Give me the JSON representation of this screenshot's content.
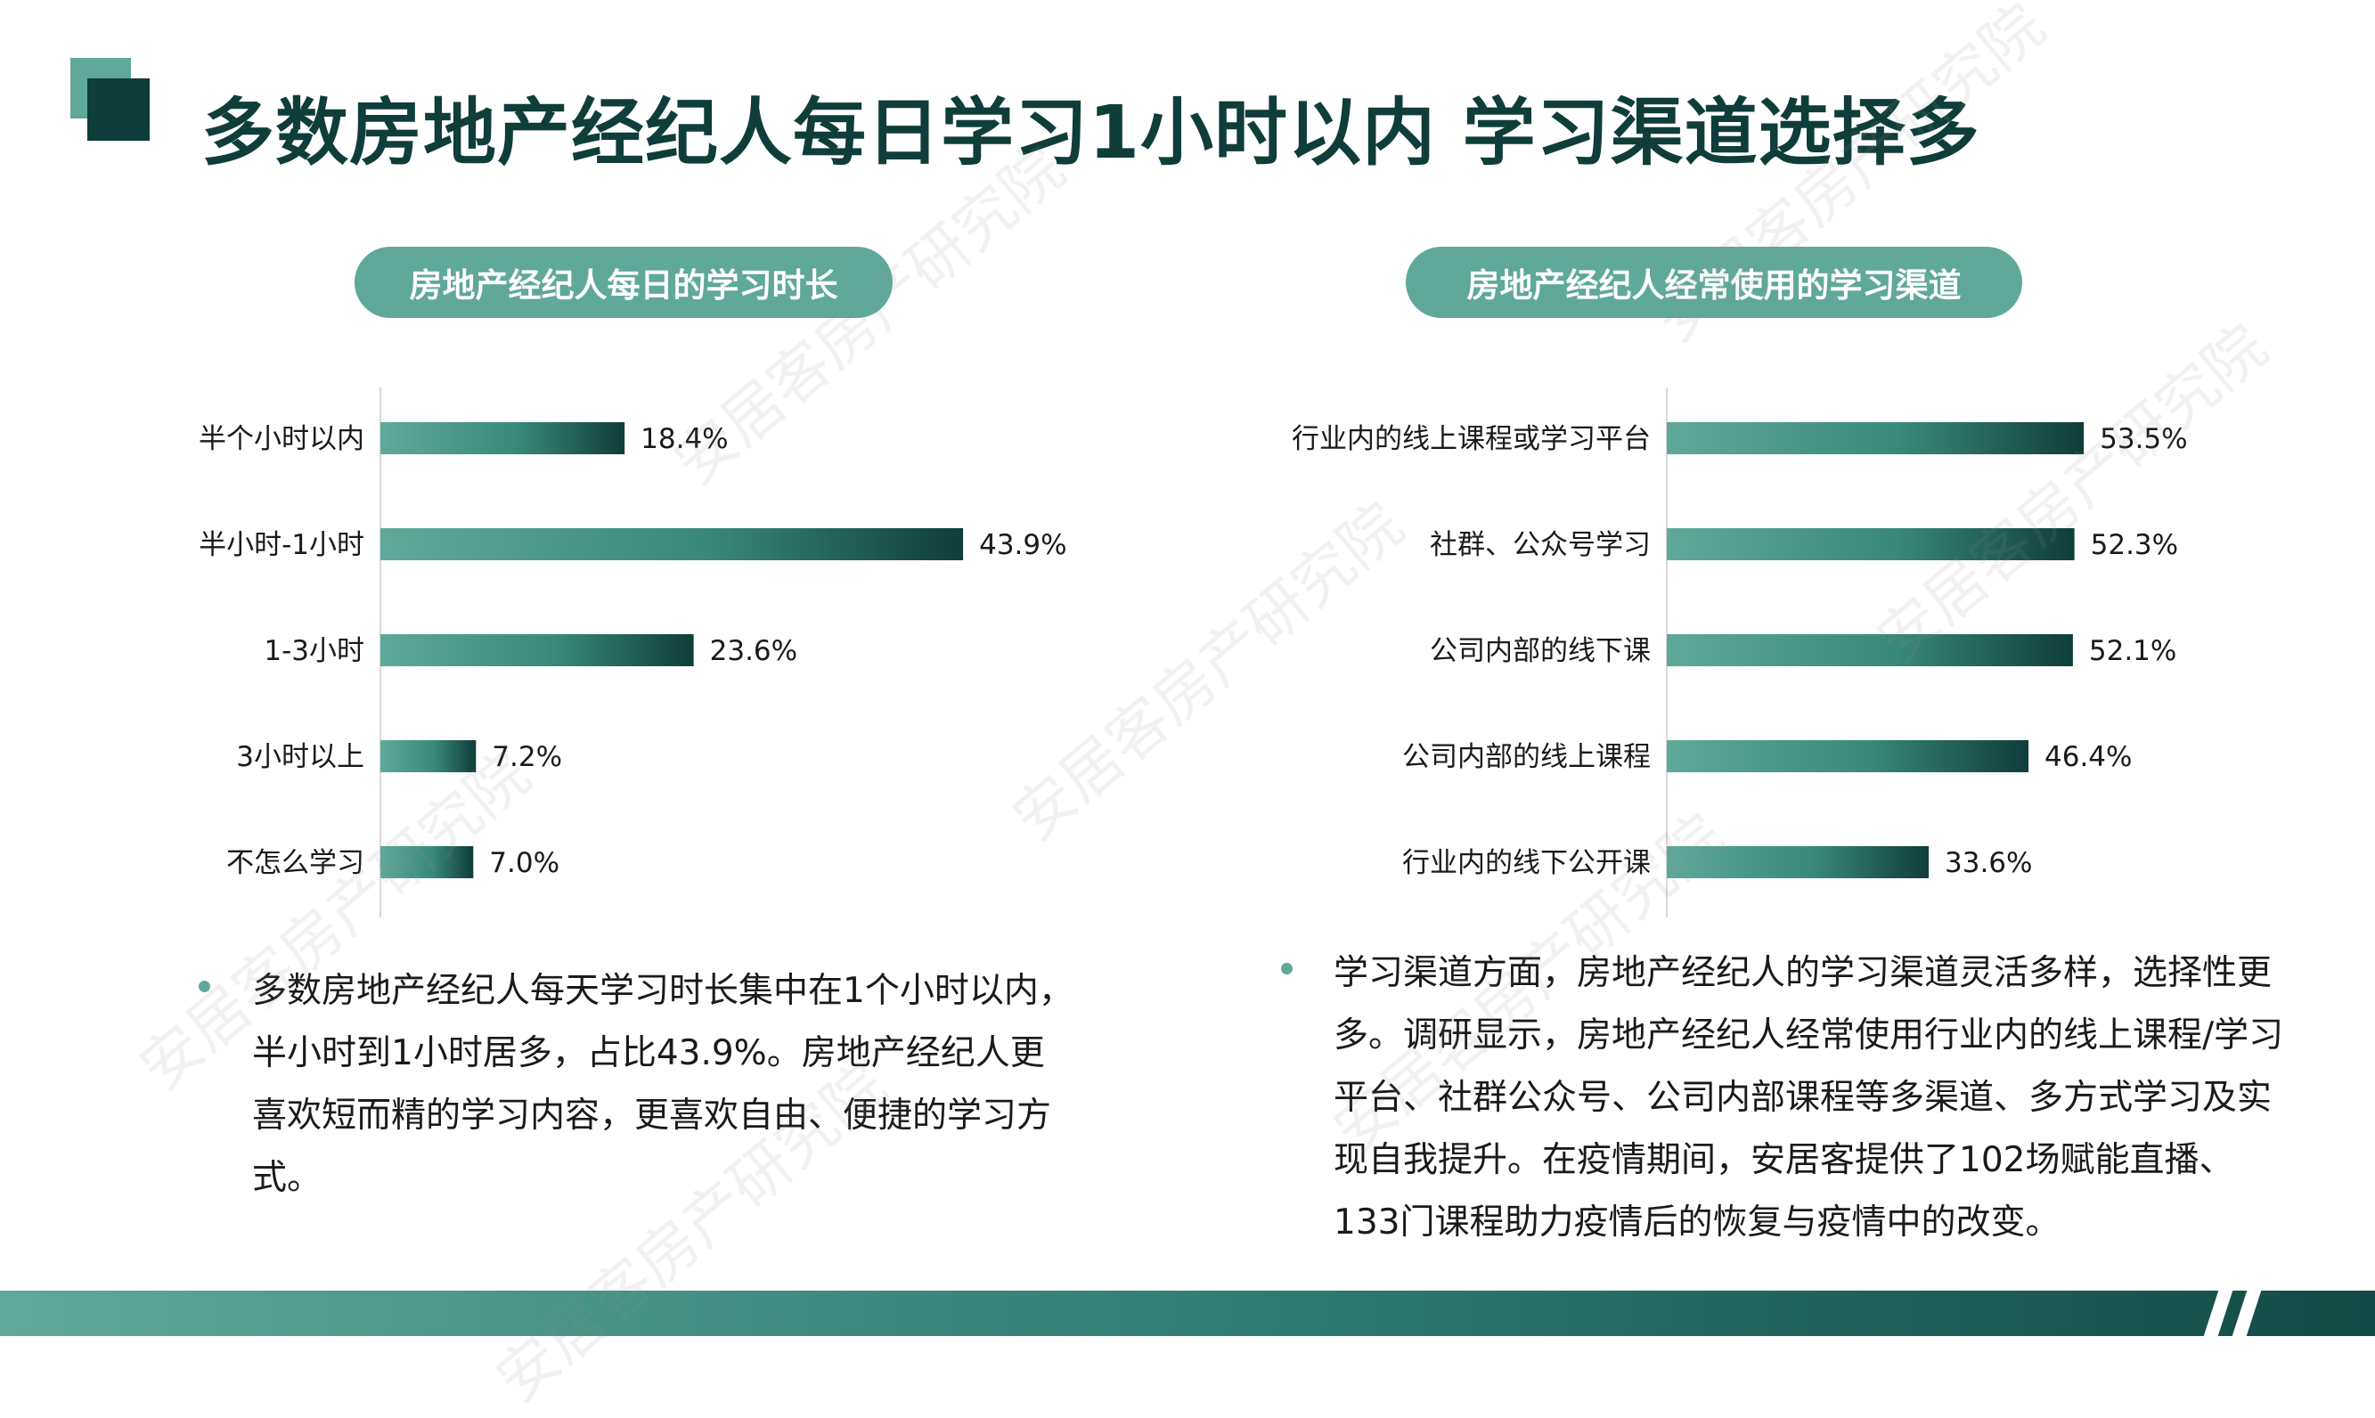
{
  "title": "多数房地产经纪人每日学习1小时以内  学习渠道选择多",
  "watermark_text": "安居客房产研究院",
  "colors": {
    "dark": "#0f3d3a",
    "accent": "#5fa89a",
    "bar_start": "#5fa89a",
    "bar_end": "#0f3d3a"
  },
  "chart_data": [
    {
      "type": "bar",
      "orientation": "horizontal",
      "title": "房地产经纪人每日的学习时长",
      "categories": [
        "半个小时以内",
        "半小时-1小时",
        "1-3小时",
        "3小时以上",
        "不怎么学习"
      ],
      "values": [
        18.4,
        43.9,
        23.6,
        7.2,
        7.0
      ],
      "value_labels": [
        "18.4%",
        "43.9%",
        "23.6%",
        "7.2%",
        "7.0%"
      ],
      "unit": "%",
      "grid": false
    },
    {
      "type": "bar",
      "orientation": "horizontal",
      "title": "房地产经纪人经常使用的学习渠道",
      "categories": [
        "行业内的线上课程或学习平台",
        "社群、公众号学习",
        "公司内部的线下课",
        "公司内部的线上课程",
        "行业内的线下公开课"
      ],
      "values": [
        53.5,
        52.3,
        52.1,
        46.4,
        33.6
      ],
      "value_labels": [
        "53.5%",
        "52.3%",
        "52.1%",
        "46.4%",
        "33.6%"
      ],
      "unit": "%",
      "grid": false
    }
  ],
  "notes": {
    "left": "多数房地产经纪人每天学习时长集中在1个小时以内，半小时到1小时居多，占比43.9%。房地产经纪人更喜欢短而精的学习内容，更喜欢自由、便捷的学习方式。",
    "right": "学习渠道方面，房地产经纪人的学习渠道灵活多样，选择性更多。调研显示，房地产经纪人经常使用行业内的线上课程/学习平台、社群公众号、公司内部课程等多渠道、多方式学习及实现自我提升。在疫情期间，安居客提供了102场赋能直播、133门课程助力疫情后的恢复与疫情中的改变。"
  }
}
